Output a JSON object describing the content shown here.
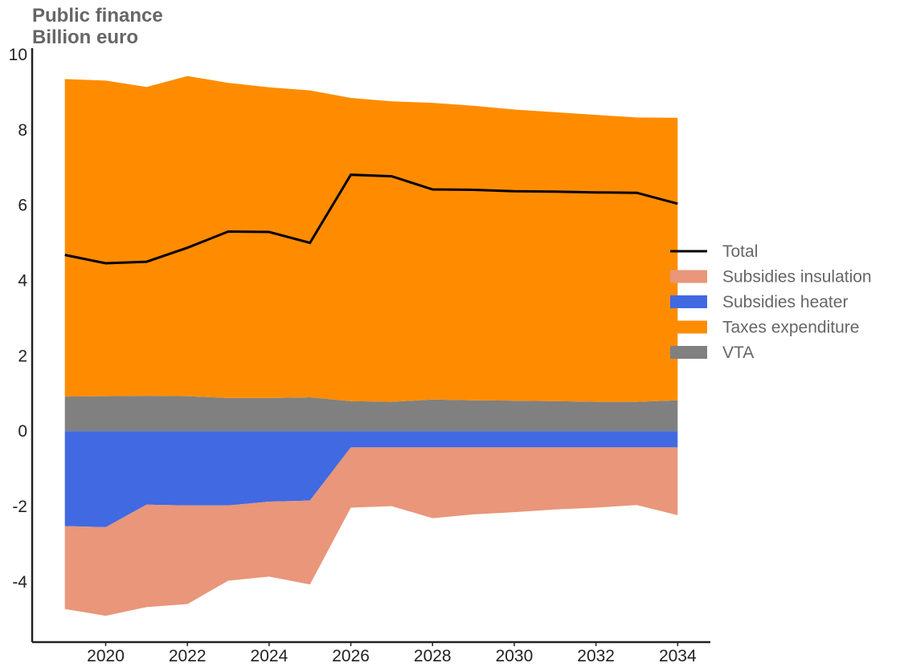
{
  "chart_data": {
    "type": "area",
    "title": "Public finance",
    "subtitle": "Billion euro",
    "xlabel": "",
    "ylabel": "",
    "x": [
      2019,
      2020,
      2021,
      2022,
      2023,
      2024,
      2025,
      2026,
      2027,
      2028,
      2029,
      2030,
      2031,
      2032,
      2033,
      2034
    ],
    "xlim": [
      2018.2,
      2034.8
    ],
    "ylim": [
      -5.6,
      10
    ],
    "xticks": [
      2020,
      2022,
      2024,
      2026,
      2028,
      2030,
      2032,
      2034
    ],
    "yticks": [
      -4,
      -2,
      0,
      2,
      4,
      6,
      8,
      10
    ],
    "grid": false,
    "legend_position": "center-right",
    "series": [
      {
        "name": "VTA",
        "kind": "area",
        "color": "#808080",
        "values": [
          0.92,
          0.93,
          0.94,
          0.93,
          0.88,
          0.88,
          0.9,
          0.8,
          0.78,
          0.84,
          0.82,
          0.81,
          0.8,
          0.78,
          0.78,
          0.82
        ]
      },
      {
        "name": "Taxes expenditure",
        "kind": "area",
        "color": "#ff8c00",
        "values": [
          8.43,
          8.38,
          8.2,
          8.5,
          8.37,
          8.25,
          8.15,
          8.05,
          7.98,
          7.88,
          7.82,
          7.73,
          7.67,
          7.62,
          7.55,
          7.5
        ]
      },
      {
        "name": "Subsidies heater",
        "kind": "area",
        "color": "#4169e1",
        "values": [
          -2.52,
          -2.55,
          -1.95,
          -1.97,
          -1.97,
          -1.87,
          -1.84,
          -0.43,
          -0.43,
          -0.43,
          -0.43,
          -0.43,
          -0.43,
          -0.43,
          -0.43,
          -0.43
        ]
      },
      {
        "name": "Subsidies insulation",
        "kind": "area",
        "color": "#e9967a",
        "values": [
          -2.2,
          -2.35,
          -2.72,
          -2.62,
          -2.0,
          -1.99,
          -2.23,
          -1.6,
          -1.56,
          -1.88,
          -1.78,
          -1.72,
          -1.65,
          -1.6,
          -1.53,
          -1.8
        ]
      },
      {
        "name": "Total",
        "kind": "line",
        "color": "#000000",
        "values": [
          4.68,
          4.46,
          4.5,
          4.87,
          5.3,
          5.29,
          5.0,
          6.81,
          6.77,
          6.42,
          6.41,
          6.37,
          6.36,
          6.34,
          6.33,
          6.04
        ]
      }
    ],
    "legend_order": [
      "Total",
      "Subsidies insulation",
      "Subsidies heater",
      "Taxes expenditure",
      "VTA"
    ]
  }
}
